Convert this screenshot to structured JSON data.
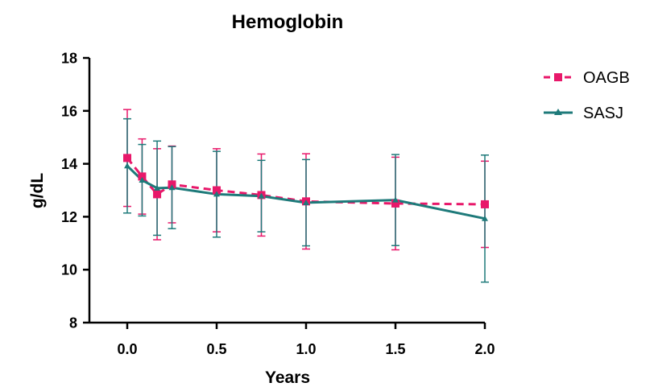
{
  "chart_data": {
    "type": "line",
    "title": "Hemoglobin",
    "xlabel": "Years",
    "ylabel": "g/dL",
    "xlim": [
      0,
      2.0
    ],
    "ylim": [
      8,
      18
    ],
    "xticks": [
      "0.0",
      "0.5",
      "1.0",
      "1.5",
      "2.0"
    ],
    "xtick_values": [
      0,
      0.5,
      1.0,
      1.5,
      2.0
    ],
    "yticks": [
      "8",
      "10",
      "12",
      "14",
      "16",
      "18"
    ],
    "ytick_values": [
      8,
      10,
      12,
      14,
      16,
      18
    ],
    "grid": false,
    "legend_position": "top-right",
    "series": [
      {
        "name": "OAGB",
        "color": "#e8186a",
        "marker": "square",
        "line_style": "dashed",
        "x": [
          0,
          0.083,
          0.167,
          0.25,
          0.5,
          0.75,
          1.0,
          1.5,
          2.0
        ],
        "y": [
          14.22,
          13.52,
          12.85,
          13.22,
          13.0,
          12.82,
          12.58,
          12.5,
          12.47
        ],
        "error": [
          1.83,
          1.42,
          1.72,
          1.45,
          1.57,
          1.55,
          1.8,
          1.75,
          1.63
        ]
      },
      {
        "name": "SASJ",
        "color": "#1e7a7a",
        "marker": "triangle",
        "line_style": "solid",
        "x": [
          0,
          0.083,
          0.167,
          0.25,
          0.5,
          0.75,
          1.0,
          1.5,
          2.0
        ],
        "y": [
          13.92,
          13.38,
          13.08,
          13.1,
          12.85,
          12.78,
          12.53,
          12.63,
          11.93
        ],
        "error": [
          1.78,
          1.35,
          1.78,
          1.55,
          1.62,
          1.35,
          1.63,
          1.72,
          2.4
        ]
      }
    ]
  }
}
